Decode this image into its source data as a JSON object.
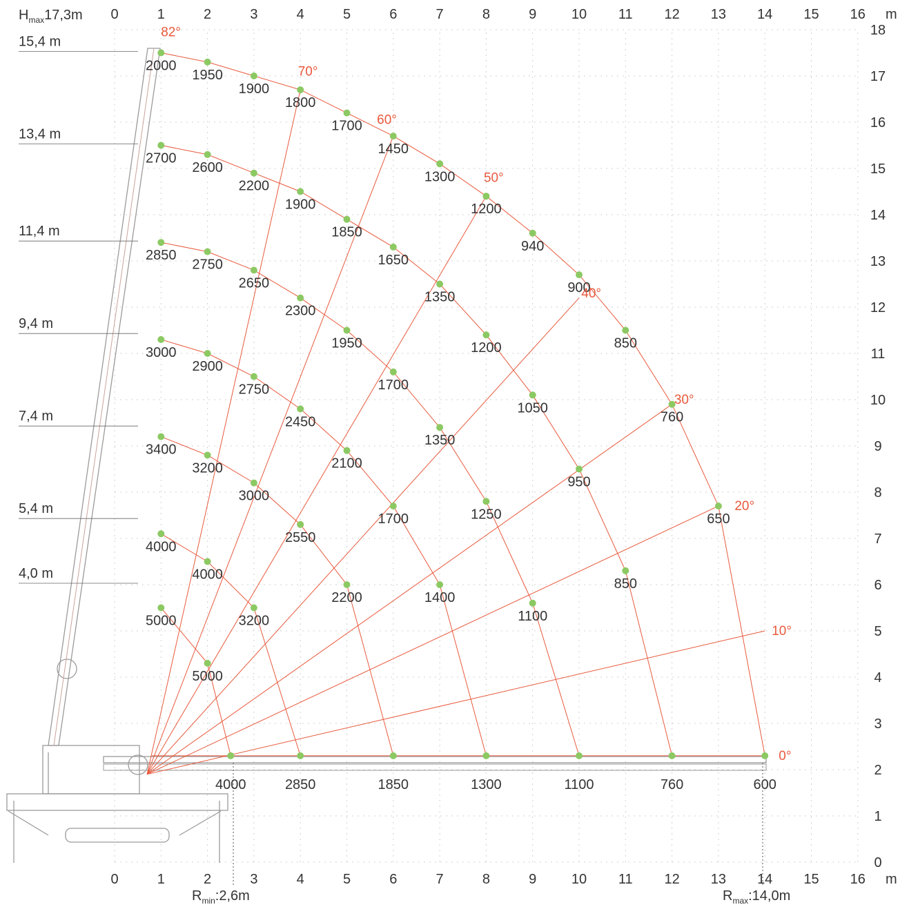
{
  "header": {
    "hmax": "17,3m",
    "hmax_prefix": "H",
    "hmax_sub": "max"
  },
  "footer": {
    "rmin_prefix": "R",
    "rmin_sub": "min",
    "rmin": ":2,6m",
    "rmax_prefix": "R",
    "rmax_sub": "max",
    "rmax": ":14,0m"
  },
  "axis_unit": "m",
  "x_ticks": [
    "0",
    "1",
    "2",
    "3",
    "4",
    "5",
    "6",
    "7",
    "8",
    "9",
    "10",
    "11",
    "12",
    "13",
    "14",
    "15",
    "16"
  ],
  "y_ticks": [
    "0",
    "1",
    "2",
    "3",
    "4",
    "5",
    "6",
    "7",
    "8",
    "9",
    "10",
    "11",
    "12",
    "13",
    "14",
    "15",
    "16",
    "17",
    "18"
  ],
  "boom_lengths": [
    {
      "label": "15,4 m",
      "h": 17.5
    },
    {
      "label": "13,4 m",
      "h": 15.5
    },
    {
      "label": "11,4 m",
      "h": 13.5
    },
    {
      "label": "9,4 m",
      "h": 11.5
    },
    {
      "label": "7,4 m",
      "h": 9.5
    },
    {
      "label": "5,4 m",
      "h": 7.5
    },
    {
      "label": "4,0 m",
      "h": 6.2
    }
  ],
  "angles": [
    {
      "label": "82°",
      "deg": 82
    },
    {
      "label": "70°",
      "deg": 70
    },
    {
      "label": "60°",
      "deg": 60
    },
    {
      "label": "50°",
      "deg": 50
    },
    {
      "label": "40°",
      "deg": 40
    },
    {
      "label": "30°",
      "deg": 30
    },
    {
      "label": "20°",
      "deg": 20
    },
    {
      "label": "10°",
      "deg": 10
    },
    {
      "label": "0°",
      "deg": 0
    }
  ],
  "colors": {
    "arc": "#e8593c",
    "point": "#8cc963",
    "text": "#333333"
  },
  "chart_data": {
    "type": "scatter",
    "x_range": [
      0,
      16
    ],
    "y_range": [
      0,
      18
    ],
    "xlabel": "m",
    "ylabel": "m",
    "points": [
      {
        "x": 1,
        "y": 17.5,
        "load": "2000"
      },
      {
        "x": 2,
        "y": 17.3,
        "load": "1950"
      },
      {
        "x": 3,
        "y": 17.0,
        "load": "1900"
      },
      {
        "x": 4,
        "y": 16.7,
        "load": "1800"
      },
      {
        "x": 5,
        "y": 16.2,
        "load": "1700"
      },
      {
        "x": 6,
        "y": 15.7,
        "load": "1450"
      },
      {
        "x": 7,
        "y": 15.1,
        "load": "1300"
      },
      {
        "x": 8,
        "y": 14.4,
        "load": "1200"
      },
      {
        "x": 9,
        "y": 13.6,
        "load": "940"
      },
      {
        "x": 10,
        "y": 12.7,
        "load": "900"
      },
      {
        "x": 11,
        "y": 11.5,
        "load": "850"
      },
      {
        "x": 12,
        "y": 9.9,
        "load": "760"
      },
      {
        "x": 13,
        "y": 7.7,
        "load": "650"
      },
      {
        "x": 14,
        "y": 2.3,
        "load": "600"
      },
      {
        "x": 1,
        "y": 15.5,
        "load": "2700"
      },
      {
        "x": 2,
        "y": 15.3,
        "load": "2600"
      },
      {
        "x": 3,
        "y": 14.9,
        "load": "2200"
      },
      {
        "x": 4,
        "y": 14.5,
        "load": "1900"
      },
      {
        "x": 5,
        "y": 13.9,
        "load": "1850"
      },
      {
        "x": 6,
        "y": 13.3,
        "load": "1650"
      },
      {
        "x": 7,
        "y": 12.5,
        "load": "1350"
      },
      {
        "x": 8,
        "y": 11.4,
        "load": "1200"
      },
      {
        "x": 9,
        "y": 10.1,
        "load": "1050"
      },
      {
        "x": 10,
        "y": 8.5,
        "load": "950"
      },
      {
        "x": 11,
        "y": 6.3,
        "load": "850"
      },
      {
        "x": 12,
        "y": 2.3,
        "load": "760"
      },
      {
        "x": 1,
        "y": 13.4,
        "load": "2850"
      },
      {
        "x": 2,
        "y": 13.2,
        "load": "2750"
      },
      {
        "x": 3,
        "y": 12.8,
        "load": "2650"
      },
      {
        "x": 4,
        "y": 12.2,
        "load": "2300"
      },
      {
        "x": 5,
        "y": 11.5,
        "load": "1950"
      },
      {
        "x": 6,
        "y": 10.6,
        "load": "1700"
      },
      {
        "x": 7,
        "y": 9.4,
        "load": "1350"
      },
      {
        "x": 8,
        "y": 7.8,
        "load": "1250"
      },
      {
        "x": 9,
        "y": 5.6,
        "load": "1100"
      },
      {
        "x": 10,
        "y": 2.3,
        "load": "1100"
      },
      {
        "x": 1,
        "y": 11.3,
        "load": "3000"
      },
      {
        "x": 2,
        "y": 11.0,
        "load": "2900"
      },
      {
        "x": 3,
        "y": 10.5,
        "load": "2750"
      },
      {
        "x": 4,
        "y": 9.8,
        "load": "2450"
      },
      {
        "x": 5,
        "y": 8.9,
        "load": "2100"
      },
      {
        "x": 6,
        "y": 7.7,
        "load": "1700"
      },
      {
        "x": 7,
        "y": 6.0,
        "load": "1400"
      },
      {
        "x": 8,
        "y": 2.3,
        "load": "1300"
      },
      {
        "x": 1,
        "y": 9.2,
        "load": "3400"
      },
      {
        "x": 2,
        "y": 8.8,
        "load": "3200"
      },
      {
        "x": 3,
        "y": 8.2,
        "load": "3000"
      },
      {
        "x": 4,
        "y": 7.3,
        "load": "2550"
      },
      {
        "x": 5,
        "y": 6.0,
        "load": "2200"
      },
      {
        "x": 6,
        "y": 2.3,
        "load": "1850"
      },
      {
        "x": 1,
        "y": 7.1,
        "load": "4000"
      },
      {
        "x": 2,
        "y": 6.5,
        "load": "4000"
      },
      {
        "x": 3,
        "y": 5.5,
        "load": "3200"
      },
      {
        "x": 4,
        "y": 2.3,
        "load": "2850"
      },
      {
        "x": 1,
        "y": 5.5,
        "load": "5000"
      },
      {
        "x": 2,
        "y": 4.3,
        "load": "5000"
      },
      {
        "x": 2.5,
        "y": 2.3,
        "load": "4000"
      }
    ]
  }
}
